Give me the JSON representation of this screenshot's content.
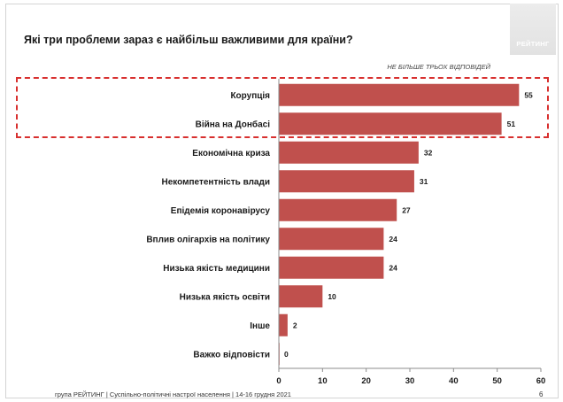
{
  "title": "Які три проблеми зараз є найбільш важливими для країни?",
  "logo_text": "РЕЙТИНГ",
  "note": "НЕ БІЛЬШЕ ТРЬОХ ВІДПОВІДЕЙ",
  "footer": "група РЕЙТИНГ | Суспільно-політичні настрої населення | 14-16 грудня 2021",
  "page_number": "6",
  "colors": {
    "bar": "#c0504d",
    "highlight": "#d8302f",
    "axis": "#8c8c8c"
  },
  "chart_data": {
    "type": "bar",
    "orientation": "horizontal",
    "categories": [
      "Корупція",
      "Війна на Донбасі",
      "Економічна криза",
      "Некомпетентність влади",
      "Епідемія коронавірусу",
      "Вплив олігархів на політику",
      "Низька якість медицини",
      "Низька якість освіти",
      "Інше",
      "Важко відповісти"
    ],
    "values": [
      55,
      51,
      32,
      31,
      27,
      24,
      24,
      10,
      2,
      0
    ],
    "xlim": [
      0,
      60
    ],
    "xticks": [
      "0",
      "10",
      "20",
      "30",
      "40",
      "50",
      "60"
    ],
    "grid": false,
    "highlighted_categories": [
      "Корупція",
      "Війна на Донбасі"
    ]
  }
}
